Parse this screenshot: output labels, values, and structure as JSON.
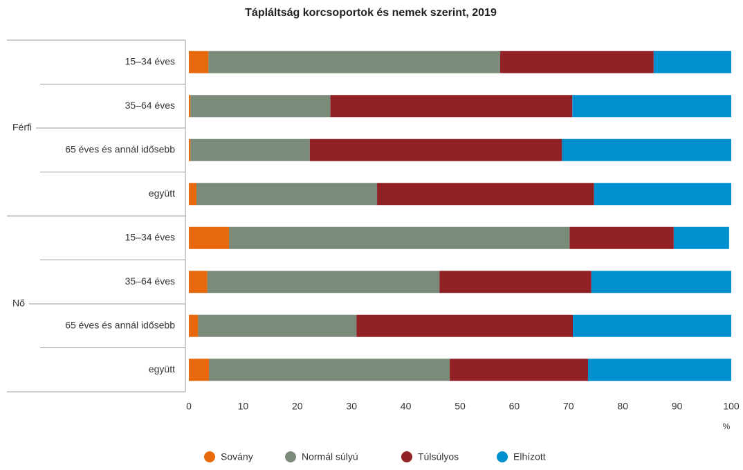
{
  "chart_data": {
    "type": "stacked-bar-horizontal",
    "title": "Tápláltság korcsoportok és nemek szerint, 2019",
    "groups": [
      {
        "name": "Férfi",
        "categories": [
          "15–34 éves",
          "35–64 éves",
          "65 éves és annál idősebb",
          "együtt"
        ]
      },
      {
        "name": "Nő",
        "categories": [
          "15–34 éves",
          "35–64 éves",
          "65 éves és annál idősebb",
          "együtt"
        ]
      }
    ],
    "series": [
      {
        "name": "Sovány",
        "color": "#e8690b",
        "values": [
          3.6,
          0.3,
          0.3,
          1.4,
          7.4,
          3.4,
          1.7,
          3.7
        ]
      },
      {
        "name": "Normál súlyú",
        "color": "#7a8b7a",
        "values": [
          53.8,
          25.8,
          22.0,
          33.3,
          62.8,
          42.8,
          29.2,
          44.4
        ]
      },
      {
        "name": "Túlsúlyos",
        "color": "#922126",
        "values": [
          28.3,
          44.6,
          46.5,
          40.0,
          19.2,
          28.0,
          39.9,
          25.5
        ]
      },
      {
        "name": "Elhízott",
        "color": "#0090d0",
        "values": [
          14.3,
          29.3,
          31.2,
          25.3,
          10.2,
          25.8,
          29.2,
          26.4
        ]
      }
    ],
    "xlim": [
      0,
      100
    ],
    "xticks": [
      0,
      10,
      20,
      30,
      40,
      50,
      60,
      70,
      80,
      90,
      100
    ],
    "xlabel": "%",
    "grid": false,
    "legend": "bottom"
  }
}
